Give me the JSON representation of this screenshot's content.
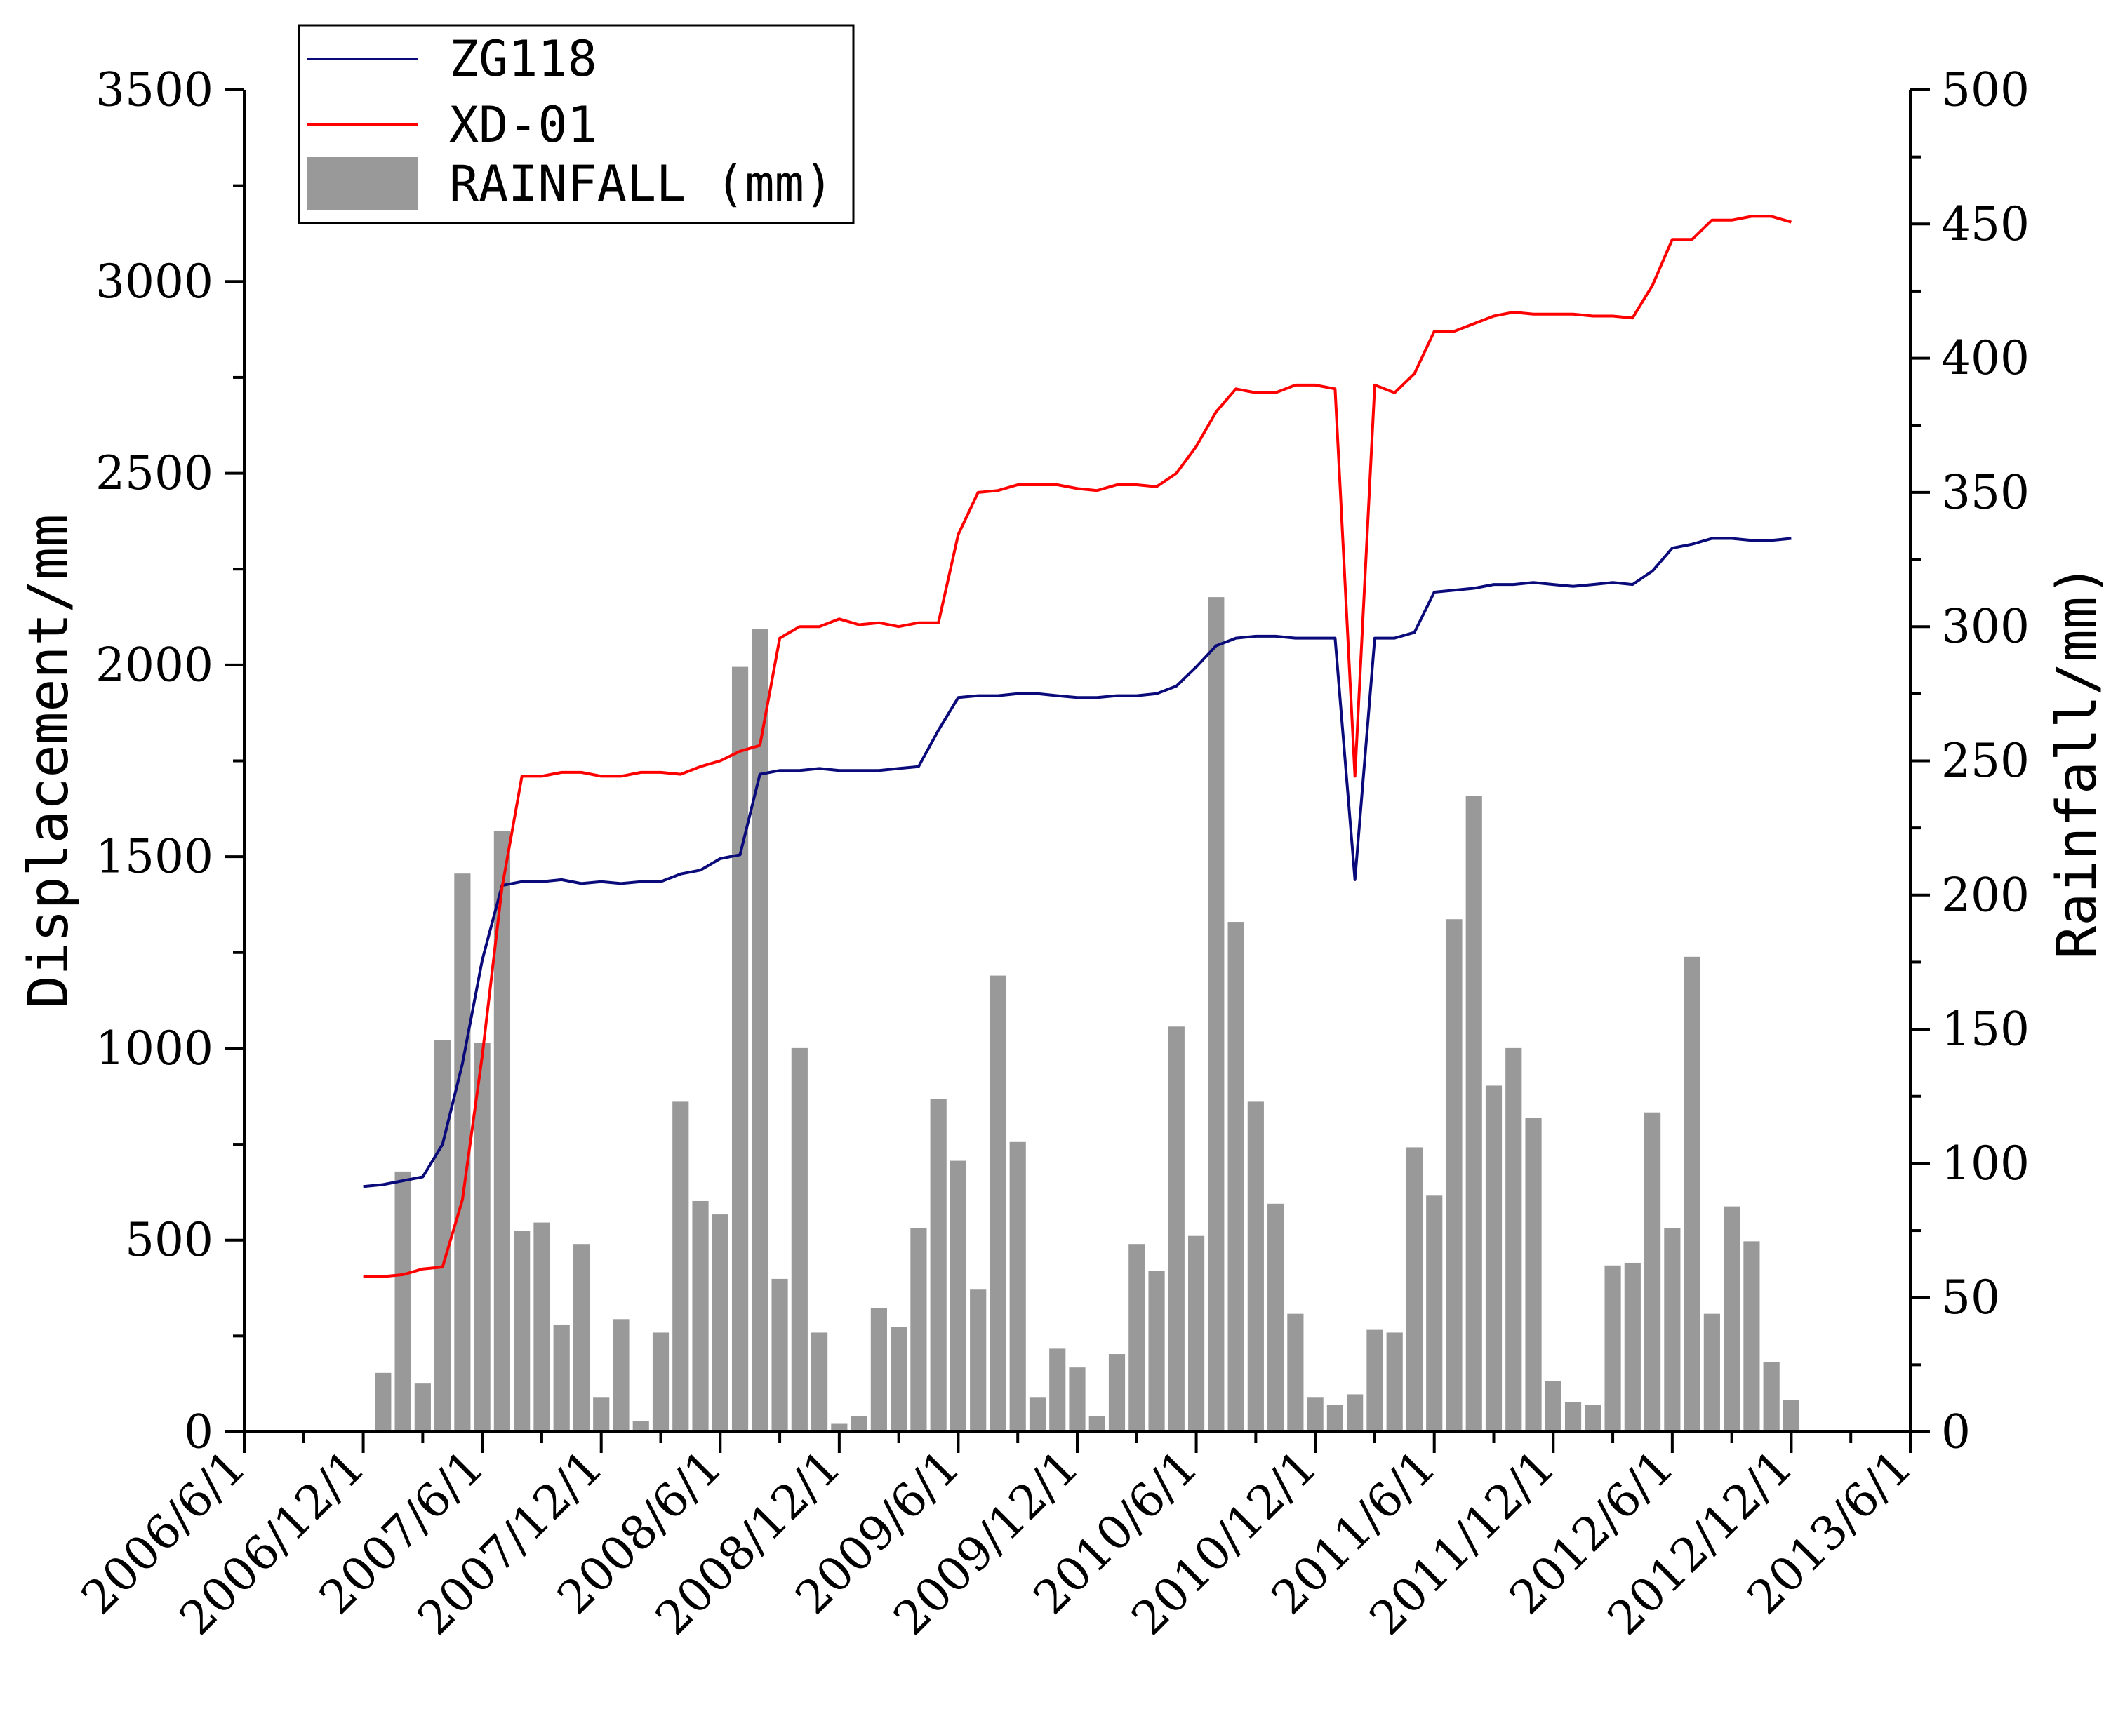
{
  "chart_data": {
    "type": "line+bar",
    "title": "",
    "xlabel": "",
    "ylabel": "Displacement/mm",
    "y2label": "Rainfall/mm)",
    "ylim": [
      0,
      3500
    ],
    "y2lim": [
      0,
      500
    ],
    "y_ticks": [
      0,
      500,
      1000,
      1500,
      2000,
      2500,
      3000,
      3500
    ],
    "y2_ticks": [
      0,
      50,
      100,
      150,
      200,
      250,
      300,
      350,
      400,
      450,
      500
    ],
    "x_tick_labels": [
      "2006/6/1",
      "2006/12/1",
      "2007/6/1",
      "2007/12/1",
      "2008/6/1",
      "2008/12/1",
      "2009/6/1",
      "2009/12/1",
      "2010/6/1",
      "2010/12/1",
      "2011/6/1",
      "2011/12/1",
      "2012/6/1",
      "2012/12/1",
      "2013/6/1"
    ],
    "x_range_months": [
      0,
      84
    ],
    "legend_position": "top-left",
    "legend": [
      {
        "key": "ZG118",
        "label": "ZG118",
        "kind": "line",
        "color": "#0a0a7a"
      },
      {
        "key": "XD-01",
        "label": "XD-01",
        "kind": "line",
        "color": "#ff0000"
      },
      {
        "key": "RAINFALL",
        "label": "RAINFALL (mm)",
        "kind": "bar",
        "color": "#999999"
      }
    ],
    "series": [
      {
        "name": "ZG118",
        "color": "#0a0a7a",
        "axis": "left",
        "months": [
          6,
          7,
          8,
          9,
          10,
          11,
          12,
          13,
          14,
          15,
          16,
          17,
          18,
          19,
          20,
          21,
          22,
          23,
          24,
          25,
          26,
          27,
          28,
          29,
          30,
          31,
          32,
          33,
          34,
          35,
          36,
          37,
          38,
          39,
          40,
          41,
          42,
          43,
          44,
          45,
          46,
          47,
          48,
          49,
          50,
          51,
          52,
          53,
          54,
          55,
          56,
          57,
          58,
          59,
          60,
          61,
          62,
          63,
          64,
          65,
          66,
          67,
          68,
          69,
          70,
          71,
          72,
          73,
          74,
          75,
          76,
          77,
          78
        ],
        "values": [
          640,
          645,
          655,
          665,
          750,
          960,
          1230,
          1425,
          1435,
          1435,
          1440,
          1430,
          1435,
          1430,
          1435,
          1435,
          1455,
          1465,
          1495,
          1505,
          1715,
          1725,
          1725,
          1730,
          1725,
          1725,
          1725,
          1730,
          1735,
          1830,
          1915,
          1920,
          1920,
          1925,
          1925,
          1920,
          1915,
          1915,
          1920,
          1920,
          1925,
          1945,
          1995,
          2050,
          2070,
          2075,
          2075,
          2070,
          2070,
          2070,
          1440,
          2070,
          2070,
          2085,
          2190,
          2195,
          2200,
          2210,
          2210,
          2215,
          2210,
          2205,
          2210,
          2215,
          2210,
          2245,
          2305,
          2315,
          2330,
          2330,
          2325,
          2325,
          2330
        ]
      },
      {
        "name": "XD-01",
        "color": "#ff0000",
        "axis": "left",
        "months": [
          6,
          7,
          8,
          9,
          10,
          11,
          12,
          13,
          14,
          15,
          16,
          17,
          18,
          19,
          20,
          21,
          22,
          23,
          24,
          25,
          26,
          27,
          28,
          29,
          30,
          31,
          32,
          33,
          34,
          35,
          36,
          37,
          38,
          39,
          40,
          41,
          42,
          43,
          44,
          45,
          46,
          47,
          48,
          49,
          50,
          51,
          52,
          53,
          54,
          55,
          56,
          57,
          58,
          59,
          60,
          61,
          62,
          63,
          64,
          65,
          66,
          67,
          68,
          69,
          70,
          71,
          72,
          73,
          74,
          75,
          76,
          77,
          78
        ],
        "values": [
          405,
          405,
          410,
          425,
          430,
          605,
          980,
          1420,
          1710,
          1710,
          1720,
          1720,
          1710,
          1710,
          1720,
          1720,
          1715,
          1735,
          1750,
          1775,
          1790,
          2070,
          2100,
          2100,
          2120,
          2105,
          2110,
          2100,
          2110,
          2110,
          2340,
          2450,
          2455,
          2470,
          2470,
          2470,
          2460,
          2455,
          2470,
          2470,
          2465,
          2500,
          2570,
          2660,
          2720,
          2710,
          2710,
          2730,
          2730,
          2720,
          1710,
          2730,
          2710,
          2760,
          2870,
          2870,
          2890,
          2910,
          2920,
          2915,
          2915,
          2915,
          2910,
          2910,
          2905,
          2990,
          3110,
          3110,
          3160,
          3160,
          3170,
          3170,
          3155
        ]
      },
      {
        "name": "RAINFALL (mm)",
        "color": "#999999",
        "axis": "right",
        "months": [
          7,
          8,
          9,
          10,
          11,
          12,
          13,
          14,
          15,
          16,
          17,
          18,
          19,
          20,
          21,
          22,
          23,
          24,
          25,
          26,
          27,
          28,
          29,
          30,
          31,
          32,
          33,
          34,
          35,
          36,
          37,
          38,
          39,
          40,
          41,
          42,
          43,
          44,
          45,
          46,
          47,
          48,
          49,
          50,
          51,
          52,
          53,
          54,
          55,
          56,
          57,
          58,
          59,
          60,
          61,
          62,
          63,
          64,
          65,
          66,
          67,
          68,
          69,
          70,
          71,
          72,
          73,
          74,
          75,
          76,
          77,
          78
        ],
        "values": [
          22,
          97,
          18,
          146,
          208,
          145,
          224,
          75,
          78,
          40,
          70,
          13,
          42,
          4,
          37,
          123,
          86,
          81,
          285,
          299,
          57,
          143,
          37,
          3,
          6,
          46,
          39,
          76,
          124,
          101,
          53,
          170,
          108,
          13,
          31,
          24,
          6,
          29,
          70,
          60,
          151,
          73,
          311,
          190,
          123,
          85,
          44,
          13,
          10,
          14,
          38,
          37,
          106,
          88,
          191,
          237,
          129,
          143,
          117,
          19,
          11,
          10,
          62,
          63,
          119,
          76,
          177,
          44,
          84,
          71,
          26,
          12
        ]
      }
    ]
  }
}
